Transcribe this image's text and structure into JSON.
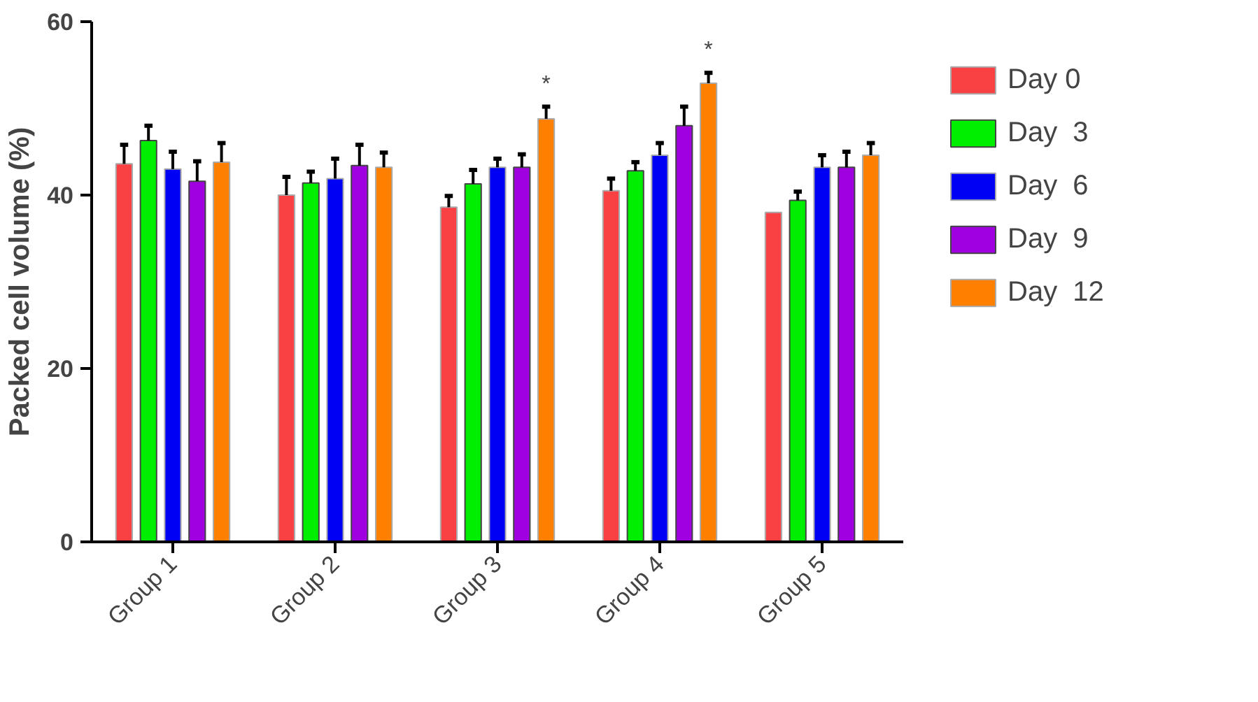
{
  "chart_data": {
    "type": "bar",
    "ylabel": "Packed cell volume (%)",
    "categories": [
      "Group 1",
      "Group 2",
      "Group 3",
      "Group 4",
      "Group 5"
    ],
    "ylim": [
      0,
      60
    ],
    "yticks": [
      0,
      20,
      40,
      60
    ],
    "grid": false,
    "legend": "right",
    "series": [
      {
        "name": "Day 0",
        "color": "#f94144",
        "values": [
          43.6,
          40.0,
          38.6,
          40.5,
          38.0
        ],
        "errors": [
          [
            43.6,
            45.8
          ],
          [
            40.0,
            42.1
          ],
          [
            38.6,
            39.9
          ],
          [
            40.5,
            41.9
          ],
          null
        ]
      },
      {
        "name": "Day  3",
        "color": "#00ee00",
        "values": [
          46.3,
          41.4,
          41.3,
          42.8,
          39.4
        ],
        "errors": [
          [
            46.3,
            48.0
          ],
          [
            41.4,
            42.7
          ],
          [
            41.3,
            42.9
          ],
          [
            42.8,
            43.8
          ],
          [
            39.4,
            40.4
          ]
        ]
      },
      {
        "name": "Day  6",
        "color": "#0000f5",
        "values": [
          43.0,
          41.9,
          43.2,
          44.6,
          43.2
        ],
        "errors": [
          [
            43.0,
            45.0
          ],
          [
            41.9,
            44.2
          ],
          [
            43.2,
            44.2
          ],
          [
            44.6,
            46.0
          ],
          [
            43.2,
            44.6
          ]
        ]
      },
      {
        "name": "Day  9",
        "color": "#a000e0",
        "values": [
          41.6,
          43.4,
          43.2,
          48.0,
          43.2
        ],
        "errors": [
          [
            41.6,
            43.9
          ],
          [
            43.4,
            45.8
          ],
          [
            43.2,
            44.7
          ],
          [
            48.0,
            50.2
          ],
          [
            43.2,
            45.0
          ]
        ]
      },
      {
        "name": "Day  12",
        "color": "#ff8000",
        "values": [
          43.8,
          43.2,
          48.8,
          52.9,
          44.6
        ],
        "errors": [
          [
            43.8,
            46.0
          ],
          [
            43.2,
            44.9
          ],
          [
            48.8,
            50.2
          ],
          [
            52.9,
            54.1
          ],
          [
            44.6,
            46.0
          ]
        ]
      }
    ],
    "annotations": [
      "*",
      "*"
    ]
  }
}
